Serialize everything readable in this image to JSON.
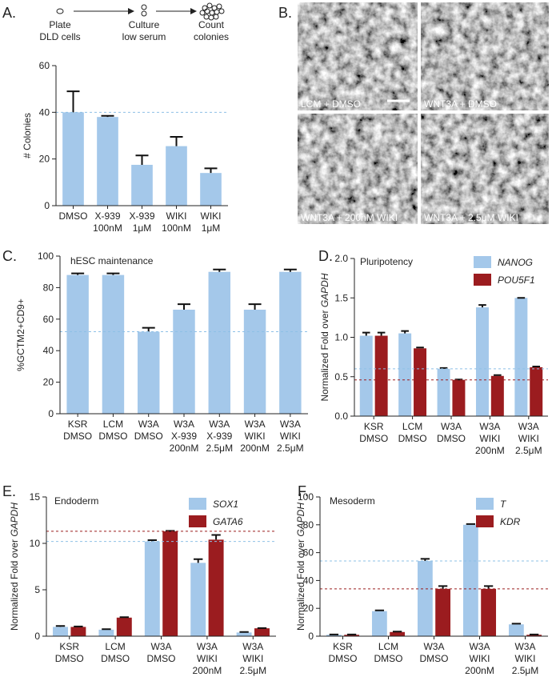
{
  "schematic": {
    "panel": "A.",
    "steps": [
      [
        "Plate",
        "DLD cells"
      ],
      [
        "Culture",
        "low serum"
      ],
      [
        "Count",
        "colonies"
      ]
    ]
  },
  "images": {
    "panel": "B.",
    "labels": [
      "LCM + DMSO",
      "WNT3A + DMSO",
      "WNT3A + 200nM WIKI",
      "WNT3A + 2.5μM WIKI"
    ]
  },
  "chart_data": [
    {
      "type": "bar",
      "ylabel": "# Colonies",
      "categories": [
        [
          "DMSO"
        ],
        [
          "X-939",
          "100nM"
        ],
        [
          "X-939",
          "1μM"
        ],
        [
          "WIKI",
          "100nM"
        ],
        [
          "WIKI",
          "1μM"
        ]
      ],
      "series": [
        {
          "color": "#a4c8ea",
          "values": [
            40,
            38,
            17.5,
            25.5,
            14
          ],
          "errors": [
            9,
            0.5,
            4,
            4,
            2
          ]
        }
      ],
      "ylim": [
        0,
        60
      ],
      "yticks": [
        0,
        20,
        40,
        60
      ],
      "reference_lines": [
        {
          "value": 40,
          "color": "#8ec0e6"
        }
      ]
    },
    {
      "type": "bar",
      "panel": "C.",
      "title": "hESC maintenance",
      "ylabel": "%GCTM2+CD9+",
      "categories": [
        [
          "KSR",
          "DMSO"
        ],
        [
          "LCM",
          "DMSO"
        ],
        [
          "W3A",
          "DMSO"
        ],
        [
          "W3A",
          "X-939",
          "200nM"
        ],
        [
          "W3A",
          "X-939",
          "2.5μM"
        ],
        [
          "W3A",
          "WIKI",
          "200nM"
        ],
        [
          "W3A",
          "WIKI",
          "2.5μM"
        ]
      ],
      "series": [
        {
          "color": "#a4c8ea",
          "values": [
            88,
            88,
            52,
            66,
            90,
            66,
            90
          ],
          "errors": [
            1,
            1,
            2.5,
            3.5,
            1.5,
            3.5,
            1.5
          ]
        }
      ],
      "ylim": [
        0,
        100
      ],
      "yticks": [
        0,
        20,
        40,
        60,
        80,
        100
      ],
      "reference_lines": [
        {
          "value": 52,
          "color": "#8ec0e6"
        }
      ]
    },
    {
      "type": "bar",
      "panel": "D.",
      "title": "Pluripotency",
      "ylabel": [
        "Normalized Fold over ",
        "GAPDH"
      ],
      "categories": [
        [
          "KSR",
          "DMSO"
        ],
        [
          "LCM",
          "DMSO"
        ],
        [
          "W3A",
          "DMSO"
        ],
        [
          "W3A",
          "WIKI",
          "200nM"
        ],
        [
          "W3A",
          "WIKI",
          "2.5μM"
        ]
      ],
      "series": [
        {
          "name": "NANOG",
          "color": "#a4c8ea",
          "values": [
            1.02,
            1.05,
            0.6,
            1.38,
            1.5
          ],
          "errors": [
            0.04,
            0.03,
            0.01,
            0.03,
            0
          ]
        },
        {
          "name": "POU5F1",
          "color": "#9b1c1f",
          "values": [
            1.02,
            0.86,
            0.46,
            0.51,
            0.62
          ],
          "errors": [
            0.04,
            0.01,
            0.005,
            0.01,
            0.01
          ]
        }
      ],
      "ylim": [
        0,
        2
      ],
      "yticks": [
        {
          "value": 0,
          "label": "0.0"
        },
        0.5,
        {
          "value": 1,
          "label": "1.0"
        },
        1.5,
        {
          "value": 2,
          "label": "2.0"
        }
      ],
      "reference_lines": [
        {
          "value": 0.6,
          "color": "#8ec0e6"
        },
        {
          "value": 0.46,
          "color": "#9b1c1f"
        }
      ]
    },
    {
      "type": "bar",
      "panel": "E.",
      "title": "Endoderm",
      "ylabel": [
        "Normalized Fold over ",
        "GAPDH"
      ],
      "categories": [
        [
          "KSR",
          "DMSO"
        ],
        [
          "LCM",
          "DMSO"
        ],
        [
          "W3A",
          "DMSO"
        ],
        [
          "W3A",
          "WIKI",
          "200nM"
        ],
        [
          "W3A",
          "WIKI",
          "2.5μM"
        ]
      ],
      "series": [
        {
          "name": "SOX1",
          "color": "#a4c8ea",
          "values": [
            1.0,
            0.7,
            10.2,
            7.9,
            0.4
          ],
          "errors": [
            0.1,
            0.05,
            0.15,
            0.4,
            0.05
          ]
        },
        {
          "name": "GATA6",
          "color": "#9b1c1f",
          "values": [
            1.0,
            2.0,
            11.3,
            10.4,
            0.85
          ],
          "errors": [
            0.05,
            0.05,
            0.05,
            0.5,
            0.02
          ]
        }
      ],
      "ylim": [
        0,
        15
      ],
      "yticks": [
        0,
        5,
        10,
        15
      ],
      "reference_lines": [
        {
          "value": 10.2,
          "color": "#8ec0e6"
        },
        {
          "value": 11.3,
          "color": "#9b1c1f"
        }
      ]
    },
    {
      "type": "bar",
      "panel": "F.",
      "title": "Mesoderm",
      "ylabel": [
        "Normalized Fold over ",
        "GAPDH"
      ],
      "categories": [
        [
          "KSR",
          "DMSO"
        ],
        [
          "LCM",
          "DMSO"
        ],
        [
          "W3A",
          "DMSO"
        ],
        [
          "W3A",
          "WIKI",
          "200nM"
        ],
        [
          "W3A",
          "WIKI",
          "2.5μM"
        ]
      ],
      "series": [
        {
          "name": "T",
          "color": "#a4c8ea",
          "values": [
            1,
            18,
            54,
            80,
            8.5
          ],
          "errors": [
            0.2,
            0.5,
            1.5,
            0.5,
            0.5
          ]
        },
        {
          "name": "KDR",
          "color": "#9b1c1f",
          "values": [
            1,
            3,
            34,
            34,
            1
          ],
          "errors": [
            0.2,
            0.3,
            2,
            2,
            0.2
          ]
        }
      ],
      "ylim": [
        0,
        100
      ],
      "yticks": [
        0,
        20,
        40,
        60,
        80,
        100
      ],
      "reference_lines": [
        {
          "value": 54,
          "color": "#8ec0e6"
        },
        {
          "value": 34,
          "color": "#9b1c1f"
        }
      ]
    }
  ]
}
